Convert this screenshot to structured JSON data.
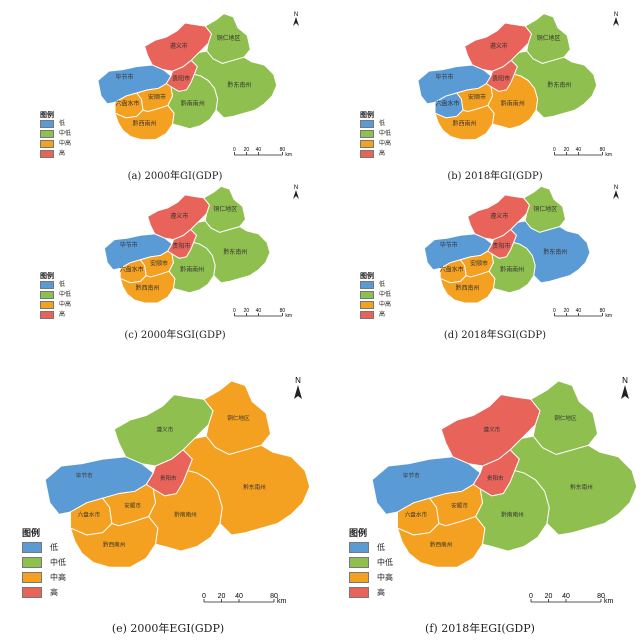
{
  "colors": {
    "低": "#5b9bd5",
    "中低": "#8fbf4f",
    "中高": "#f4a020",
    "高": "#e8635a"
  },
  "legend": {
    "title": "图例",
    "items": [
      "低",
      "中低",
      "中高",
      "高"
    ]
  },
  "north": "N",
  "scalebar": {
    "ticks": [
      "0",
      "20",
      "40",
      "80"
    ],
    "unit": "km"
  },
  "region_names": {
    "zunyi": "遵义市",
    "tongren": "铜仁地区",
    "bijie": "毕节市",
    "guiyang": "贵阳市",
    "liupanshui": "六盘水市",
    "anshun": "安顺市",
    "qiannan": "黔南南州",
    "qiandongnan": "黔东南州",
    "qianxinan": "黔西南州"
  },
  "panels": [
    {
      "caption": "(a) 2000年GI(GDP)",
      "classes": {
        "zunyi": "高",
        "tongren": "中低",
        "bijie": "低",
        "guiyang": "高",
        "liupanshui": "中高",
        "anshun": "中高",
        "qiannan": "中低",
        "qiandongnan": "中低",
        "qianxinan": "中高"
      }
    },
    {
      "caption": "(b) 2018年GI(GDP)",
      "classes": {
        "zunyi": "高",
        "tongren": "中低",
        "bijie": "低",
        "guiyang": "高",
        "liupanshui": "低",
        "anshun": "中高",
        "qiannan": "中高",
        "qiandongnan": "中低",
        "qianxinan": "中高"
      }
    },
    {
      "caption": "(c) 2000年SGI(GDP)",
      "classes": {
        "zunyi": "高",
        "tongren": "中低",
        "bijie": "低",
        "guiyang": "高",
        "liupanshui": "中高",
        "anshun": "中高",
        "qiannan": "中低",
        "qiandongnan": "中低",
        "qianxinan": "中高"
      }
    },
    {
      "caption": "(d) 2018年SGI(GDP)",
      "classes": {
        "zunyi": "高",
        "tongren": "中低",
        "bijie": "低",
        "guiyang": "高",
        "liupanshui": "中高",
        "anshun": "中高",
        "qiannan": "中低",
        "qiandongnan": "低",
        "qianxinan": "中高"
      }
    },
    {
      "caption": "(e) 2000年EGI(GDP)",
      "classes": {
        "zunyi": "中低",
        "tongren": "中高",
        "bijie": "低",
        "guiyang": "高",
        "liupanshui": "中高",
        "anshun": "中高",
        "qiannan": "中高",
        "qiandongnan": "中高",
        "qianxinan": "中高"
      }
    },
    {
      "caption": "(f) 2018年EGI(GDP)",
      "classes": {
        "zunyi": "高",
        "tongren": "中低",
        "bijie": "低",
        "guiyang": "高",
        "liupanshui": "中高",
        "anshun": "中高",
        "qiannan": "中低",
        "qiandongnan": "中低",
        "qianxinan": "中高"
      }
    }
  ]
}
